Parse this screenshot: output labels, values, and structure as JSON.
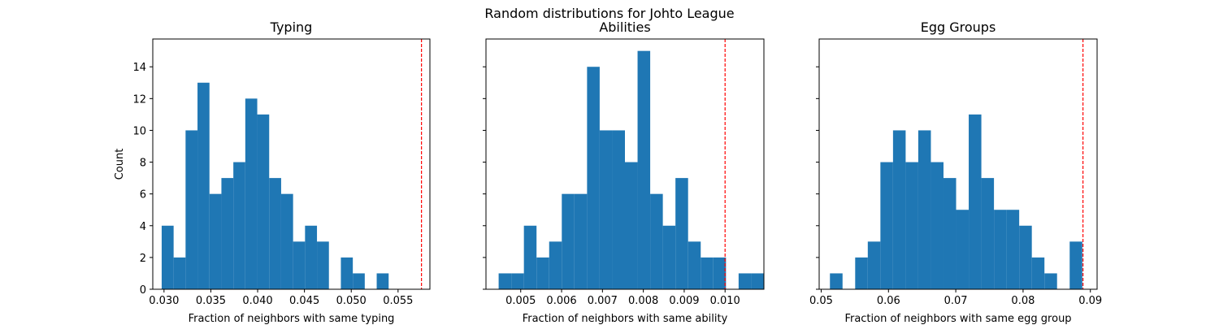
{
  "suptitle": "Random distributions for Johto League",
  "colors": {
    "bar": "#1f77b4",
    "observed_line": "#ff0000",
    "axis": "#000000"
  },
  "chart_data": [
    {
      "type": "bar",
      "title": "Typing",
      "xlabel": "Fraction of neighbors with same typing",
      "ylabel": "Count",
      "xlim": [
        0.0288,
        0.0584
      ],
      "ylim": [
        0,
        15.75
      ],
      "xticks": [
        {
          "value": 0.03,
          "label": "0.030"
        },
        {
          "value": 0.035,
          "label": "0.035"
        },
        {
          "value": 0.04,
          "label": "0.040"
        },
        {
          "value": 0.045,
          "label": "0.045"
        },
        {
          "value": 0.05,
          "label": "0.050"
        },
        {
          "value": 0.055,
          "label": "0.055"
        }
      ],
      "yticks": [
        {
          "value": 0,
          "label": "0"
        },
        {
          "value": 2,
          "label": "2"
        },
        {
          "value": 4,
          "label": "4"
        },
        {
          "value": 6,
          "label": "6"
        },
        {
          "value": 8,
          "label": "8"
        },
        {
          "value": 10,
          "label": "10"
        },
        {
          "value": 12,
          "label": "12"
        },
        {
          "value": 14,
          "label": "14"
        }
      ],
      "bin_start": 0.02975,
      "bin_width": 0.001276,
      "counts": [
        4,
        2,
        10,
        13,
        6,
        7,
        8,
        12,
        11,
        7,
        6,
        3,
        4,
        3,
        0,
        2,
        1,
        0,
        1,
        0
      ],
      "observed": 0.0575
    },
    {
      "type": "bar",
      "title": "Abilities",
      "xlabel": "Fraction of neighbors with same ability",
      "ylabel": "",
      "xlim": [
        0.00415,
        0.01095
      ],
      "ylim": [
        0,
        15.75
      ],
      "xticks": [
        {
          "value": 0.005,
          "label": "0.005"
        },
        {
          "value": 0.006,
          "label": "0.006"
        },
        {
          "value": 0.007,
          "label": "0.007"
        },
        {
          "value": 0.008,
          "label": "0.008"
        },
        {
          "value": 0.009,
          "label": "0.009"
        },
        {
          "value": 0.01,
          "label": "0.010"
        }
      ],
      "yticks": [
        {
          "value": 0,
          "label": ""
        },
        {
          "value": 2,
          "label": ""
        },
        {
          "value": 4,
          "label": ""
        },
        {
          "value": 6,
          "label": ""
        },
        {
          "value": 8,
          "label": ""
        },
        {
          "value": 10,
          "label": ""
        },
        {
          "value": 12,
          "label": ""
        },
        {
          "value": 14,
          "label": ""
        }
      ],
      "bin_start": 0.00446,
      "bin_width": 0.000309,
      "counts": [
        1,
        1,
        4,
        2,
        3,
        6,
        6,
        14,
        10,
        10,
        8,
        15,
        6,
        4,
        7,
        3,
        2,
        2,
        0,
        1,
        1
      ],
      "observed": 0.01
    },
    {
      "type": "bar",
      "title": "Egg Groups",
      "xlabel": "Fraction of neighbors with same egg group",
      "ylabel": "",
      "xlim": [
        0.0497,
        0.091
      ],
      "ylim": [
        0,
        15.75
      ],
      "xticks": [
        {
          "value": 0.05,
          "label": "0.05"
        },
        {
          "value": 0.06,
          "label": "0.06"
        },
        {
          "value": 0.07,
          "label": "0.07"
        },
        {
          "value": 0.08,
          "label": "0.08"
        },
        {
          "value": 0.09,
          "label": "0.09"
        }
      ],
      "yticks": [
        {
          "value": 0,
          "label": ""
        },
        {
          "value": 2,
          "label": ""
        },
        {
          "value": 4,
          "label": ""
        },
        {
          "value": 6,
          "label": ""
        },
        {
          "value": 8,
          "label": ""
        },
        {
          "value": 10,
          "label": ""
        },
        {
          "value": 12,
          "label": ""
        },
        {
          "value": 14,
          "label": ""
        }
      ],
      "bin_start": 0.0513,
      "bin_width": 0.001875,
      "counts": [
        1,
        0,
        2,
        3,
        8,
        10,
        8,
        10,
        8,
        7,
        5,
        11,
        7,
        5,
        5,
        4,
        2,
        1,
        0,
        3
      ],
      "observed": 0.0889
    }
  ]
}
